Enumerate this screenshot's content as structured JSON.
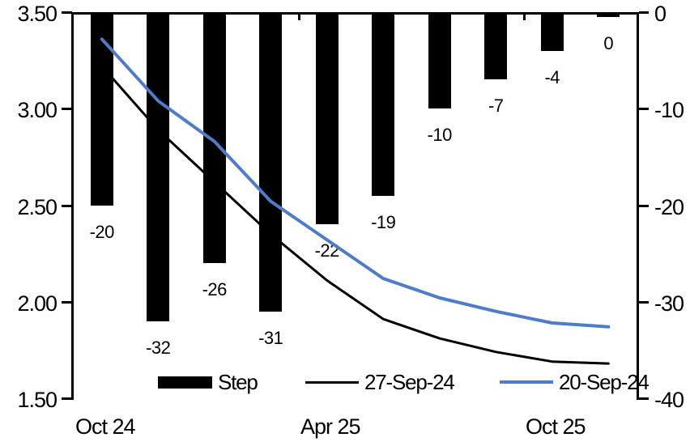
{
  "chart_data": {
    "type": "combo",
    "title": "",
    "background": "#ffffff",
    "x_count": 10,
    "x_tick_labels": [
      {
        "label": "Oct 24",
        "slot": 0
      },
      {
        "label": "Apr 25",
        "slot": 4
      },
      {
        "label": "Oct 25",
        "slot": 8
      }
    ],
    "bar_series": {
      "name": "Step",
      "axis": "right",
      "color": "#000000",
      "values": [
        -20,
        -32,
        -26,
        -31,
        -22,
        -19,
        -10,
        -7,
        -4,
        0
      ],
      "data_labels": [
        "-20",
        "-32",
        "-26",
        "-31",
        "-22",
        "-19",
        "-10",
        "-7",
        "-4",
        "0"
      ]
    },
    "line_series": [
      {
        "name": "27-Sep-24",
        "axis": "left",
        "color": "#000000",
        "stroke_width": 3,
        "values": [
          3.22,
          2.89,
          2.62,
          2.35,
          2.11,
          1.91,
          1.81,
          1.74,
          1.69,
          1.68
        ]
      },
      {
        "name": "20-Sep-24",
        "axis": "left",
        "color": "#4E7CC8",
        "stroke_width": 4,
        "values": [
          3.36,
          3.04,
          2.83,
          2.52,
          2.32,
          2.12,
          2.02,
          1.95,
          1.89,
          1.87
        ]
      }
    ],
    "left_axis": {
      "min": 1.5,
      "max": 3.5,
      "tick_labels": [
        "3.50",
        "3.00",
        "2.50",
        "2.00",
        "1.50"
      ],
      "tick_values": [
        3.5,
        3.0,
        2.5,
        2.0,
        1.5
      ]
    },
    "right_axis": {
      "min": -40,
      "max": 0,
      "tick_labels": [
        "0",
        "-10",
        "-20",
        "-30",
        "-40"
      ],
      "tick_values": [
        0,
        -10,
        -20,
        -30,
        -40
      ]
    },
    "top_boundary_ticks": [
      4,
      8
    ],
    "legend": [
      "Step",
      "27-Sep-24",
      "20-Sep-24"
    ],
    "gridlines": false,
    "legend_position": "bottom-inside"
  }
}
